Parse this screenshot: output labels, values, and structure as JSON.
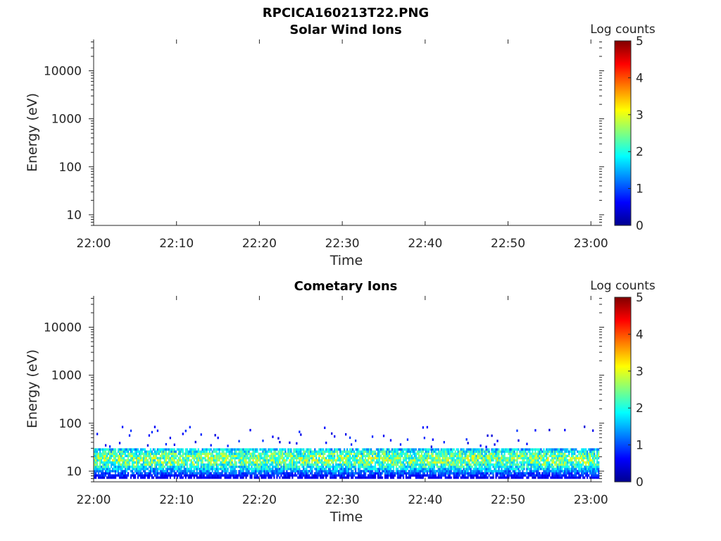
{
  "figure": {
    "title": "RPCICA160213T22.PNG"
  },
  "colors": {
    "axes": "#262626",
    "colormap": "jet"
  },
  "chart_data": [
    {
      "type": "heatmap",
      "title": "Solar Wind Ions",
      "xlabel": "Time",
      "ylabel": "Energy (eV)",
      "x_ticks": [
        "22:00",
        "22:10",
        "22:20",
        "22:30",
        "22:40",
        "22:50",
        "23:00"
      ],
      "xlim": [
        "22:00",
        "23:01"
      ],
      "y_scale": "log",
      "y_ticks": [
        "10",
        "100",
        "1000",
        "10000"
      ],
      "ylim": [
        6,
        45000
      ],
      "colorbar": {
        "label": "Log counts",
        "ticks": [
          "0",
          "1",
          "2",
          "3",
          "4",
          "5"
        ],
        "range": [
          0,
          5
        ]
      },
      "data": []
    },
    {
      "type": "heatmap",
      "title": "Cometary Ions",
      "xlabel": "Time",
      "ylabel": "Energy (eV)",
      "x_ticks": [
        "22:00",
        "22:10",
        "22:20",
        "22:30",
        "22:40",
        "22:50",
        "23:00"
      ],
      "xlim": [
        "22:00",
        "23:01"
      ],
      "y_scale": "log",
      "y_ticks": [
        "10",
        "100",
        "1000",
        "10000"
      ],
      "ylim": [
        6,
        45000
      ],
      "colorbar": {
        "label": "Log counts",
        "ticks": [
          "0",
          "1",
          "2",
          "3",
          "4",
          "5"
        ],
        "range": [
          0,
          5
        ]
      },
      "band": {
        "time_range": [
          "22:00",
          "23:01"
        ],
        "energy_range_eV": [
          7,
          30
        ],
        "peak_energy_eV": 17,
        "peak_log_counts": 2.9,
        "sporadic_counts_up_to_eV": 80
      }
    }
  ]
}
